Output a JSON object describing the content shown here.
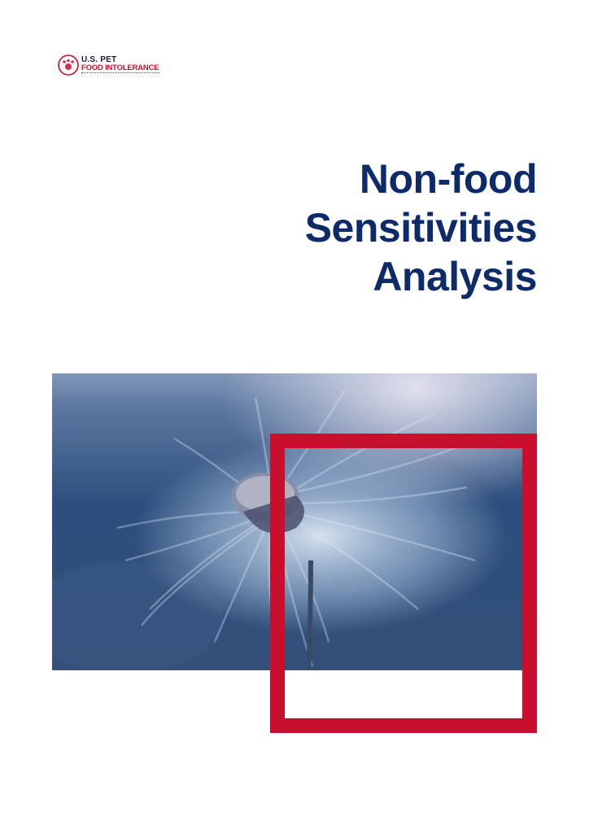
{
  "logo": {
    "line1": "U.S. PET",
    "line2": "FOOD INTOLERANCE",
    "mark_icon": "paw-circle-icon"
  },
  "title": {
    "line1": "Non-food",
    "line2": "Sensitivities",
    "line3": "Analysis"
  },
  "colors": {
    "title": "#0d2a6b",
    "accent": "#c8102e"
  },
  "image": {
    "subject": "dandelion-seed-head-photo"
  }
}
